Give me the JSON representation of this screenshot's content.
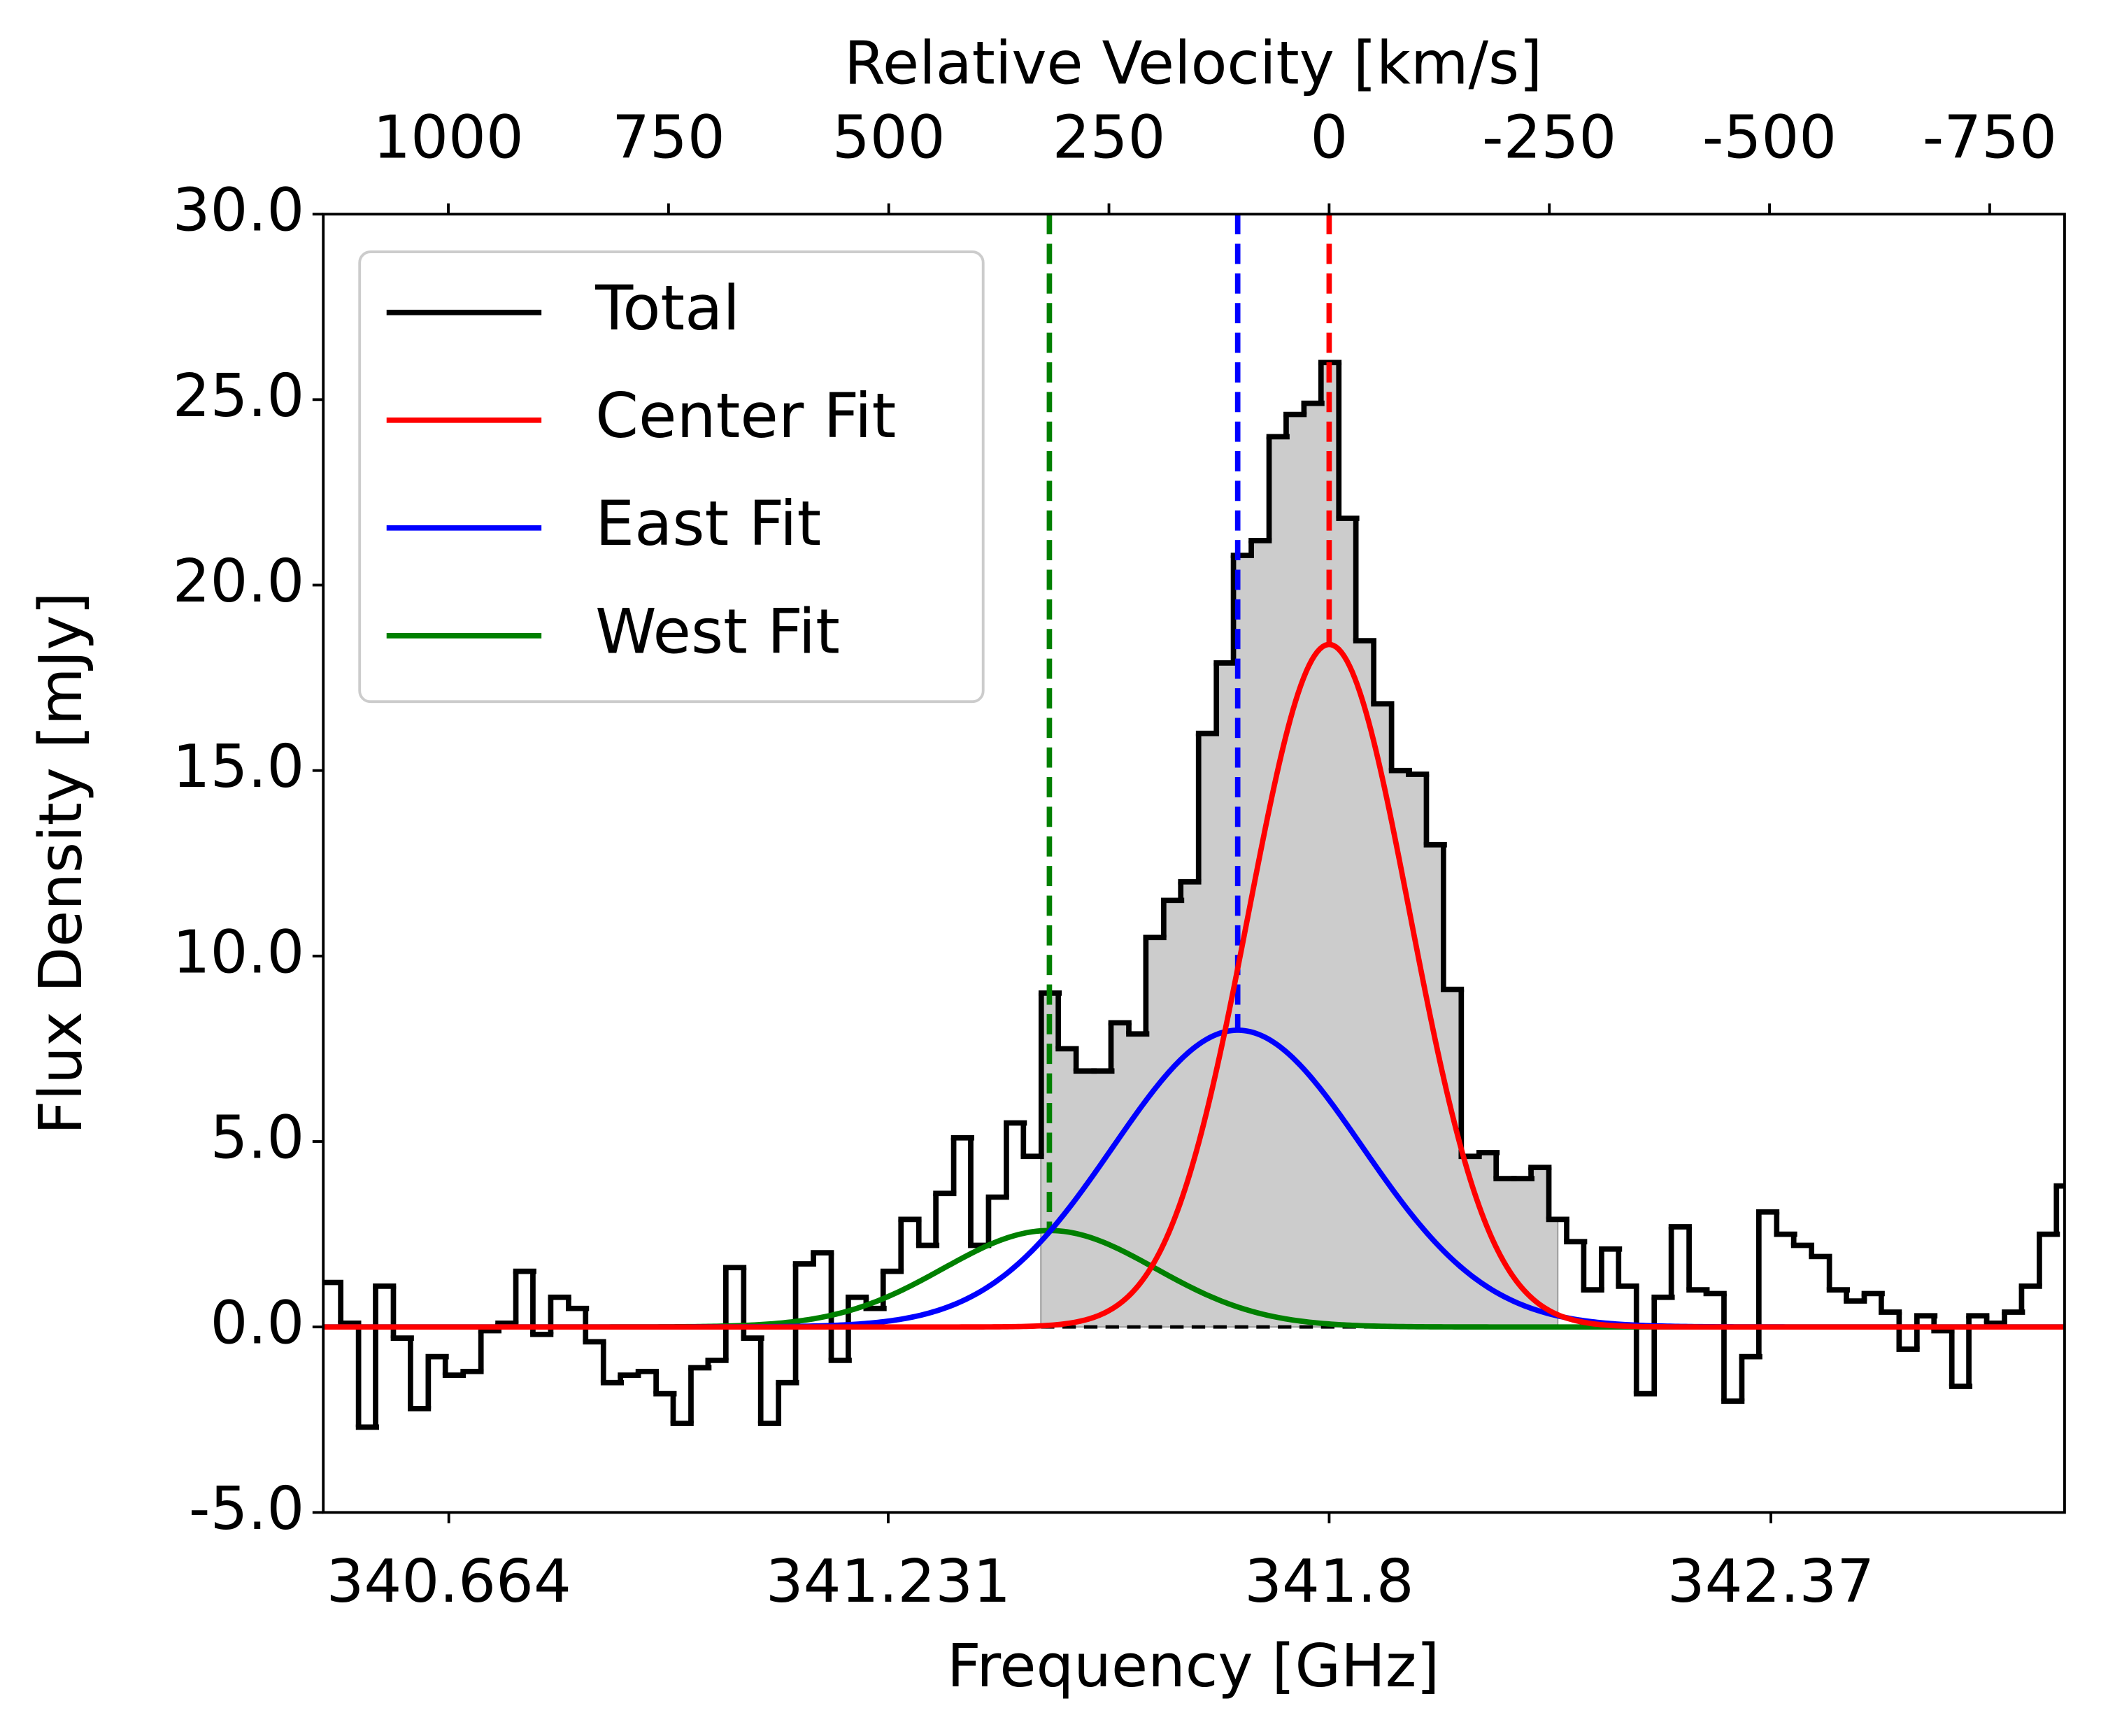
{
  "chart_data": {
    "type": "step",
    "xlabel": "Frequency [GHz]",
    "ylabel": "Flux Density [mJy]",
    "x2label": "Relative Velocity [km/s]",
    "xlim": [
      340.502,
      342.749
    ],
    "xticks": [
      340.664,
      341.231,
      341.8,
      342.37
    ],
    "x2lim": [
      1142,
      -835
    ],
    "x2ticks": [
      1000,
      750,
      500,
      250,
      0,
      -250,
      -500,
      -750
    ],
    "ylim": [
      -5,
      30
    ],
    "yticks": [
      {
        "value": -5,
        "label": "-5.0"
      },
      {
        "value": 0,
        "label": "0.0"
      },
      {
        "value": 5,
        "label": "5.0"
      },
      {
        "value": 10,
        "label": "10.0"
      },
      {
        "value": 15,
        "label": "15.0"
      },
      {
        "value": 20,
        "label": "20.0"
      },
      {
        "value": 25,
        "label": "25.0"
      },
      {
        "value": 30,
        "label": "30.0"
      }
    ],
    "legend": "upper left",
    "fill_range": [
      341.428,
      342.095
    ],
    "fill_color": "#cccccc",
    "series": [
      {
        "name": "Total",
        "color": "#000000",
        "x": [
          340.513,
          340.536,
          340.559,
          340.581,
          340.604,
          340.626,
          340.649,
          340.671,
          340.694,
          340.717,
          340.739,
          340.762,
          340.784,
          340.807,
          340.83,
          340.852,
          340.875,
          340.897,
          340.92,
          340.943,
          340.965,
          340.988,
          341.01,
          341.033,
          341.056,
          341.078,
          341.101,
          341.123,
          341.146,
          341.169,
          341.191,
          341.214,
          341.236,
          341.259,
          341.282,
          341.304,
          341.327,
          341.349,
          341.372,
          341.395,
          341.417,
          341.44,
          341.462,
          341.485,
          341.508,
          341.53,
          341.553,
          341.575,
          341.598,
          341.62,
          341.643,
          341.666,
          341.688,
          341.711,
          341.734,
          341.756,
          341.779,
          341.801,
          341.824,
          341.846,
          341.869,
          341.892,
          341.914,
          341.937,
          341.959,
          341.982,
          342.005,
          342.027,
          342.05,
          342.072,
          342.095,
          342.118,
          342.14,
          342.163,
          342.185,
          342.208,
          342.231,
          342.253,
          342.276,
          342.298,
          342.321,
          342.344,
          342.366,
          342.389,
          342.411,
          342.434,
          342.457,
          342.479,
          342.502,
          342.524,
          342.547,
          342.57,
          342.592,
          342.615,
          342.637,
          342.66,
          342.683,
          342.705,
          342.728,
          342.75
        ],
        "values": [
          1.2,
          0.1,
          -2.7,
          1.1,
          -0.3,
          -2.2,
          -0.8,
          -1.3,
          -1.2,
          -0.1,
          0.1,
          1.5,
          -0.2,
          0.8,
          0.5,
          -0.4,
          -1.5,
          -1.3,
          -1.2,
          -1.8,
          -2.6,
          -1.1,
          -0.9,
          1.6,
          -0.3,
          -2.6,
          -1.5,
          1.7,
          2.0,
          -0.9,
          0.8,
          0.5,
          1.5,
          2.9,
          2.2,
          3.6,
          5.1,
          2.2,
          3.5,
          5.5,
          4.6,
          9.0,
          7.5,
          6.9,
          6.9,
          8.2,
          7.9,
          10.5,
          11.5,
          12.0,
          16.0,
          17.9,
          20.8,
          21.2,
          24.0,
          24.6,
          24.9,
          26.0,
          21.8,
          18.5,
          16.8,
          15.0,
          14.9,
          13.0,
          9.1,
          4.6,
          4.7,
          4.0,
          4.0,
          4.3,
          2.9,
          2.3,
          1.0,
          2.1,
          1.1,
          -1.8,
          0.8,
          2.7,
          1.0,
          0.9,
          -2.0,
          -0.8,
          3.1,
          2.5,
          2.2,
          1.9,
          1.0,
          0.7,
          0.9,
          0.4,
          -0.6,
          0.3,
          -0.1,
          -1.6,
          0.3,
          0.1,
          0.4,
          1.1,
          2.5,
          3.8
        ]
      },
      {
        "name": "Center Fit",
        "color": "#ff0000",
        "amplitude": 18.4,
        "center": 341.8,
        "sigma": 0.104
      },
      {
        "name": "East Fit",
        "color": "#0000ff",
        "amplitude": 8.0,
        "center": 341.682,
        "sigma": 0.161
      },
      {
        "name": "West Fit",
        "color": "#008000",
        "amplitude": 2.6,
        "center": 341.439,
        "sigma": 0.137
      }
    ]
  }
}
